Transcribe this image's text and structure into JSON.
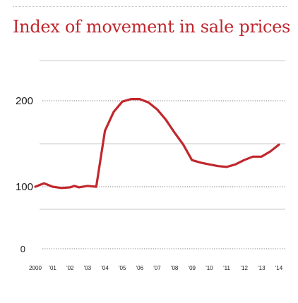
{
  "title": "Index of movement in sale prices",
  "chart_data": {
    "type": "line",
    "title": "Index of movement in sale prices",
    "xlabel": "",
    "ylabel": "",
    "x_tick_labels": [
      "2000",
      "'01",
      "'02",
      "'03",
      "'04",
      "'05",
      "'06",
      "'07",
      "'08",
      "'09",
      "'10",
      "'11",
      "'12",
      "'13",
      "'14"
    ],
    "y_tick_labels": [
      "0",
      "100",
      "200"
    ],
    "ylim": [
      0,
      200
    ],
    "grid": true,
    "legend": "none",
    "line_color": "#c1272d",
    "series": [
      {
        "x": [
          2000,
          2000.5,
          2001,
          2001.5,
          2002,
          2002.25,
          2002.5,
          2003,
          2003.5,
          2004,
          2004.5,
          2005,
          2005.5,
          2006,
          2006.5,
          2007,
          2007.5,
          2008,
          2008.5,
          2009,
          2009.5,
          2010,
          2010.5,
          2011,
          2011.5,
          2012,
          2012.5,
          2013,
          2013.5,
          2014
        ],
        "y": [
          100,
          104,
          100,
          98,
          99,
          101,
          99,
          101,
          100,
          165,
          187,
          199,
          202,
          202,
          198,
          190,
          178,
          163,
          149,
          131,
          128,
          126,
          124,
          123,
          126,
          131,
          135,
          135,
          141,
          149
        ]
      }
    ]
  }
}
